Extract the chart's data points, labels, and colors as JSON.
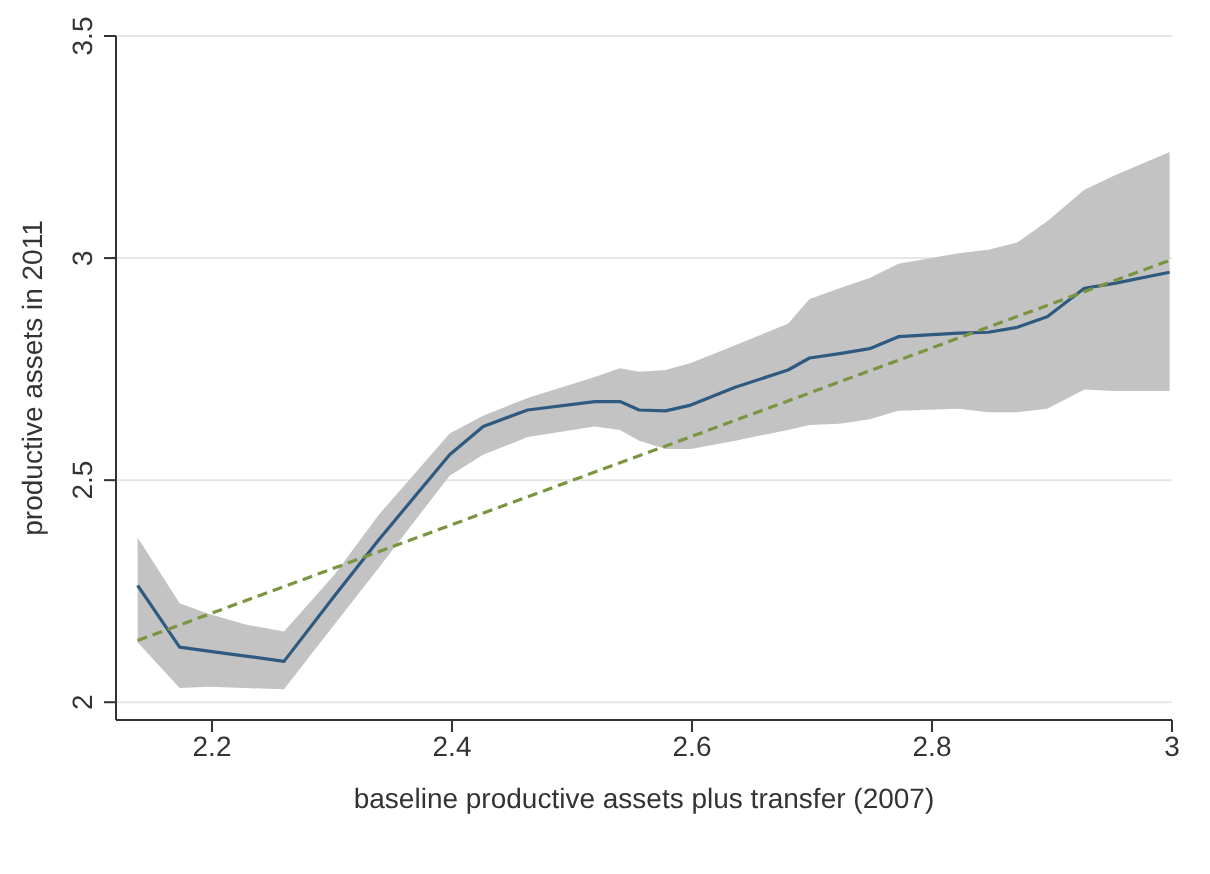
{
  "chart_data": {
    "type": "line",
    "xlabel": "baseline productive assets plus transfer (2007)",
    "ylabel": "productive assets in 2011",
    "xlim": [
      2.12,
      3
    ],
    "xticks": [
      2.2,
      2.4,
      2.6,
      2.8,
      3
    ],
    "ylim": [
      1.96,
      3.5
    ],
    "yticks": [
      2,
      2.5,
      3,
      3.5
    ],
    "grid": "y",
    "series": [
      {
        "color": "#2f5a80",
        "line_style": "solid",
        "x": [
          2.138,
          2.173,
          2.197,
          2.228,
          2.26,
          2.302,
          2.339,
          2.398,
          2.426,
          2.463,
          2.519,
          2.54,
          2.556,
          2.578,
          2.599,
          2.636,
          2.68,
          2.698,
          2.723,
          2.748,
          2.772,
          2.822,
          2.847,
          2.871,
          2.896,
          2.927,
          2.952,
          2.998
        ],
        "values": [
          2.263,
          2.124,
          2.115,
          2.104,
          2.092,
          2.239,
          2.366,
          2.557,
          2.621,
          2.658,
          2.677,
          2.677,
          2.658,
          2.656,
          2.669,
          2.709,
          2.748,
          2.775,
          2.785,
          2.796,
          2.823,
          2.831,
          2.833,
          2.844,
          2.868,
          2.932,
          2.943,
          2.968
        ],
        "lower": [
          2.135,
          2.032,
          2.035,
          2.032,
          2.029,
          2.175,
          2.303,
          2.51,
          2.557,
          2.597,
          2.621,
          2.613,
          2.589,
          2.57,
          2.57,
          2.589,
          2.613,
          2.624,
          2.627,
          2.637,
          2.656,
          2.661,
          2.653,
          2.653,
          2.661,
          2.704,
          2.701,
          2.701
        ],
        "upper": [
          2.371,
          2.223,
          2.199,
          2.175,
          2.159,
          2.287,
          2.422,
          2.605,
          2.645,
          2.685,
          2.732,
          2.752,
          2.744,
          2.748,
          2.764,
          2.804,
          2.852,
          2.908,
          2.932,
          2.955,
          2.987,
          3.011,
          3.019,
          3.035,
          3.083,
          3.154,
          3.186,
          3.239
        ]
      },
      {
        "color": "#7a9440",
        "line_style": "dashed",
        "x": [
          2.138,
          2.998
        ],
        "values": [
          2.139,
          2.995
        ]
      }
    ]
  }
}
